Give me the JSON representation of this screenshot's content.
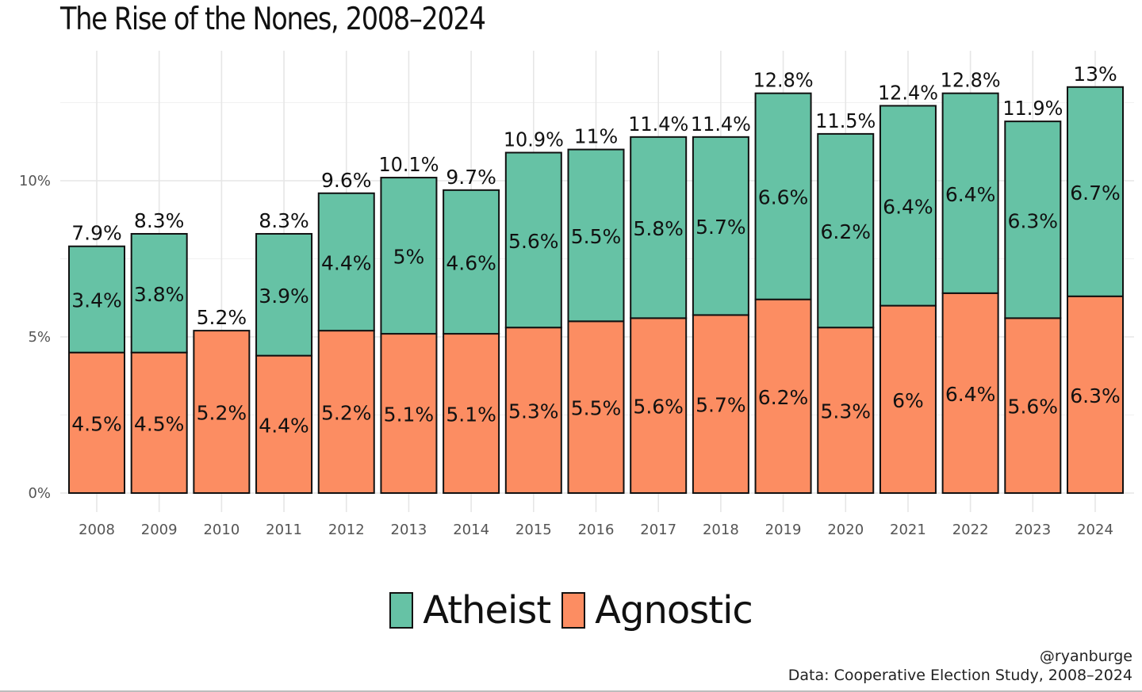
{
  "chart_data": {
    "type": "bar",
    "stacked": true,
    "title": "The Rise of the Nones, 2008–2024",
    "xlabel": "",
    "ylabel": "",
    "ylim": [
      0,
      14
    ],
    "y_ticks": [
      0,
      5,
      10
    ],
    "y_tick_labels": [
      "0%",
      "5%",
      "10%"
    ],
    "categories": [
      "2008",
      "2009",
      "2010",
      "2011",
      "2012",
      "2013",
      "2014",
      "2015",
      "2016",
      "2017",
      "2018",
      "2019",
      "2020",
      "2021",
      "2022",
      "2023",
      "2024"
    ],
    "series": [
      {
        "name": "Agnostic",
        "color": "#fc8d62",
        "values": [
          4.5,
          4.5,
          5.2,
          4.4,
          5.2,
          5.1,
          5.1,
          5.3,
          5.5,
          5.6,
          5.7,
          6.2,
          5.3,
          6.0,
          6.4,
          5.6,
          6.3
        ],
        "labels": [
          "4.5%",
          "4.5%",
          "5.2%",
          "4.4%",
          "5.2%",
          "5.1%",
          "5.1%",
          "5.3%",
          "5.5%",
          "5.6%",
          "5.7%",
          "6.2%",
          "5.3%",
          "6%",
          "6.4%",
          "5.6%",
          "6.3%"
        ]
      },
      {
        "name": "Atheist",
        "color": "#66c2a5",
        "values": [
          3.4,
          3.8,
          null,
          3.9,
          4.4,
          5.0,
          4.6,
          5.6,
          5.5,
          5.8,
          5.7,
          6.6,
          6.2,
          6.4,
          6.4,
          6.3,
          6.7
        ],
        "labels": [
          "3.4%",
          "3.8%",
          "",
          "3.9%",
          "4.4%",
          "5%",
          "4.6%",
          "5.6%",
          "5.5%",
          "5.8%",
          "5.7%",
          "6.6%",
          "6.2%",
          "6.4%",
          "6.4%",
          "6.3%",
          "6.7%"
        ]
      }
    ],
    "totals": [
      7.9,
      8.3,
      5.2,
      8.3,
      9.6,
      10.1,
      9.7,
      10.9,
      11.0,
      11.4,
      11.4,
      12.8,
      11.5,
      12.4,
      12.8,
      11.9,
      13.0
    ],
    "total_labels": [
      "7.9%",
      "8.3%",
      "5.2%",
      "8.3%",
      "9.6%",
      "10.1%",
      "9.7%",
      "10.9%",
      "11%",
      "11.4%",
      "11.4%",
      "12.8%",
      "11.5%",
      "12.4%",
      "12.8%",
      "11.9%",
      "13%"
    ],
    "legend": {
      "position": "bottom",
      "items": [
        {
          "name": "Atheist",
          "color": "#66c2a5"
        },
        {
          "name": "Agnostic",
          "color": "#fc8d62"
        }
      ]
    },
    "grid": true
  },
  "caption": {
    "handle": "@ryanburge",
    "source": "Data: Cooperative Election Study, 2008–2024"
  }
}
